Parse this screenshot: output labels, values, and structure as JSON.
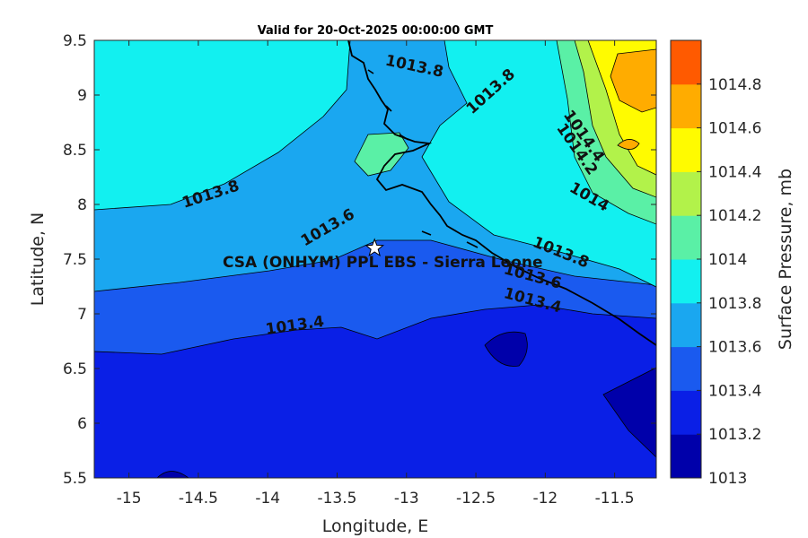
{
  "title": "Valid for 20-Oct-2025 00:00:00 GMT",
  "chart_data": {
    "type": "contour-map",
    "xlabel": "Longitude, E",
    "ylabel": "Latitude, N",
    "xlim": [
      -15.25,
      -11.2
    ],
    "ylim": [
      5.5,
      9.5
    ],
    "xticks": [
      "-15",
      "-14.5",
      "-14",
      "-13.5",
      "-13",
      "-12.5",
      "-12",
      "-11.5"
    ],
    "xtick_values": [
      -15,
      -14.5,
      -14,
      -13.5,
      -13,
      -12.5,
      -12,
      -11.5
    ],
    "yticks": [
      "5.5",
      "6",
      "6.5",
      "7",
      "7.5",
      "8",
      "8.5",
      "9",
      "9.5"
    ],
    "ytick_values": [
      5.5,
      6,
      6.5,
      7,
      7.5,
      8,
      8.5,
      9,
      9.5
    ],
    "contour_labels": [
      {
        "text": "1013.8",
        "lon": -12.95,
        "lat": 9.22,
        "angle": 12
      },
      {
        "text": "1013.8",
        "lon": -12.37,
        "lat": 9.0,
        "angle": -42
      },
      {
        "text": "1013.8",
        "lon": -14.4,
        "lat": 8.05,
        "angle": -18
      },
      {
        "text": "1013.6",
        "lon": -13.55,
        "lat": 7.75,
        "angle": -30
      },
      {
        "text": "1013.4",
        "lon": -13.8,
        "lat": 6.85,
        "angle": -8
      },
      {
        "text": "1014.4",
        "lon": -11.75,
        "lat": 8.6,
        "angle": 55
      },
      {
        "text": "1014.2",
        "lon": -11.8,
        "lat": 8.48,
        "angle": 55
      },
      {
        "text": "1014",
        "lon": -11.7,
        "lat": 8.03,
        "angle": 30
      },
      {
        "text": "1013.8",
        "lon": -11.9,
        "lat": 7.52,
        "angle": 22
      },
      {
        "text": "1013.6",
        "lon": -12.1,
        "lat": 7.3,
        "angle": 15
      },
      {
        "text": "1013.4",
        "lon": -12.1,
        "lat": 7.08,
        "angle": 15
      }
    ],
    "site": {
      "label": "CSA (ONHYM) PPL EBS  - Sierra Leone",
      "lon": -13.23,
      "lat": 7.6
    },
    "colorbar": {
      "label": "Surface Pressure, mb",
      "levels": [
        1013,
        1013.2,
        1013.4,
        1013.6,
        1013.8,
        1014,
        1014.2,
        1014.4,
        1014.6,
        1014.8
      ],
      "tick_labels": [
        "1013",
        "1013.2",
        "1013.4",
        "1013.6",
        "1013.8",
        "1014",
        "1014.2",
        "1014.4",
        "1014.6",
        "1014.8"
      ],
      "colors": [
        "#0000aa",
        "#0a1fe6",
        "#1a5aef",
        "#1aa7f0",
        "#12f0f0",
        "#5af0a6",
        "#b2f24a",
        "#fffb00",
        "#ffac00",
        "#ff5a00"
      ]
    }
  }
}
